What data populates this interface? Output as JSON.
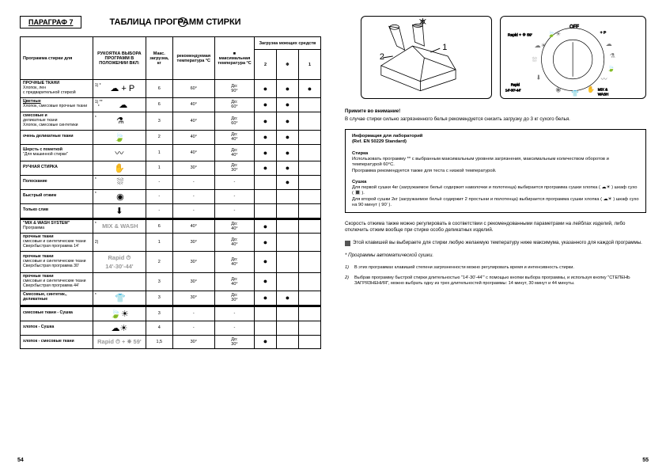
{
  "eu_badge": "EU",
  "paragraph_label": "ПАРАГРАФ 7",
  "title": "ТАБЛИЦА ПРОГРАММ СТИРКИ",
  "page_left": "54",
  "page_right": "55",
  "table": {
    "headers": {
      "program": "Программа стирки для",
      "symbol": "РУКОЯТКА ВЫБОРА ПРОГРАММ В ПОЛОЖЕНИИ ВКЛ:",
      "load": "Макс. загрузка, кг",
      "temp": "рекомендуемая температура °C",
      "maxtemp_sq": "■",
      "maxtemp": "максимальная температура °C",
      "detergent": "Загрузка моющих средств",
      "det2": "2",
      "detS": "❄",
      "det1": "1"
    },
    "rows": [
      {
        "name": "ПРОЧНЫЕ ТКАНИ",
        "sub": "Хлопок, лен\nс предварительной стиркой",
        "symbol": "☁ + P",
        "note": "1) *",
        "load": "6",
        "temp": "60°",
        "maxtemp": "До:\n90°",
        "d2": "●",
        "ds": "●",
        "d1": "●"
      },
      {
        "name": "Цветные",
        "sub": "Хлопок, смесовые прочные ткани",
        "under": true,
        "symbol": "☁",
        "note": "1) **\n*",
        "load": "6",
        "temp": "40°",
        "maxtemp": "До:\n60°",
        "d2": "●",
        "ds": "●",
        "d1": ""
      },
      {
        "name": "смесовые и",
        "sub": "деликатные ткани\nХлопок, смесовые синтетики",
        "symbol": "⚗",
        "note": "*",
        "load": "3",
        "temp": "40°",
        "maxtemp": "До:\n60°",
        "d2": "●",
        "ds": "●",
        "d1": ""
      },
      {
        "name": "очень деликатные ткани",
        "sub": "",
        "symbol": "🍃",
        "note": "",
        "load": "2",
        "temp": "40°",
        "maxtemp": "До:\n40°",
        "d2": "●",
        "ds": "●",
        "d1": ""
      },
      {
        "name": "Шерсть с пометкой",
        "sub": "\"Для машинной стирки\"",
        "symbol": "〰",
        "note": "",
        "load": "1",
        "temp": "40°",
        "maxtemp": "До:\n40°",
        "d2": "●",
        "ds": "●",
        "d1": ""
      },
      {
        "name": "РУЧНАЯ СТИРКА",
        "sub": "",
        "symbol": "✋",
        "note": "",
        "load": "1",
        "temp": "30°",
        "maxtemp": "До:\n30°",
        "d2": "●",
        "ds": "●",
        "d1": ""
      },
      {
        "name": "Полоскание",
        "sub": "",
        "symbol": "⛆",
        "note": "*",
        "load": "-",
        "temp": "-",
        "maxtemp": "-",
        "d2": "",
        "ds": "●",
        "d1": ""
      },
      {
        "name": "Быстрый отжим",
        "sub": "",
        "symbol": "◉",
        "note": "*",
        "load": "-",
        "temp": "-",
        "maxtemp": "-",
        "d2": "",
        "ds": "",
        "d1": ""
      },
      {
        "name": "Только слив",
        "sub": "",
        "symbol": "⬇",
        "note": "",
        "load": "-",
        "temp": "-",
        "maxtemp": "-",
        "d2": "",
        "ds": "",
        "d1": ""
      },
      {
        "divider": true
      },
      {
        "name": "\"MIX & WASH SYSTEM\"",
        "sub": "Программа",
        "symbol": "MIX & WASH",
        "gray": true,
        "note": "*",
        "load": "6",
        "temp": "40°",
        "maxtemp": "До:\n40°",
        "d2": "●",
        "ds": "",
        "d1": ""
      },
      {
        "name": "прочные ткани",
        "sub": "смесовые и синтетические ткани\nСверхбыстрая программа 14'",
        "symbol": " ",
        "note": "2)",
        "load": "1",
        "temp": "30°",
        "maxtemp": "До:\n40°",
        "d2": "●",
        "ds": "",
        "d1": ""
      },
      {
        "name": "прочные ткани",
        "sub": "смесовые и синтетические ткани\nСверхбыстрая программа 30'",
        "symbol": "Rapid ⏱\n14'-30'-44'",
        "gray": true,
        "load": "2",
        "temp": "30°",
        "maxtemp": "До:\n40°",
        "d2": "●",
        "ds": "",
        "d1": ""
      },
      {
        "name": "прочные ткани",
        "sub": "смесовые и синтетические ткани\nСверхбыстрая программа 44'",
        "symbol": " ",
        "load": "3",
        "temp": "30°",
        "maxtemp": "До:\n40°",
        "d2": "●",
        "ds": "",
        "d1": ""
      },
      {
        "name": "Смесовые, синтетик., деликатные",
        "sub": "",
        "symbol": "👕",
        "note": "*",
        "load": "3",
        "temp": "30°",
        "maxtemp": "До:\n30°",
        "d2": "●",
        "ds": "●",
        "d1": ""
      },
      {
        "divider": true
      },
      {
        "name": "смесовые ткани - Сушка",
        "sub": "",
        "symbol": "🍃☀",
        "note": "",
        "load": "3",
        "temp": "-",
        "maxtemp": "-",
        "d2": "",
        "ds": "",
        "d1": ""
      },
      {
        "name": "хлопок - Сушка",
        "sub": "",
        "symbol": "☁☀",
        "note": "",
        "load": "4",
        "temp": "-",
        "maxtemp": "-",
        "d2": "",
        "ds": "",
        "d1": ""
      },
      {
        "name": "хлопок - смесовые ткани",
        "sub": "",
        "symbol": "Rapid ⏱ + ☀ 59'",
        "gray": true,
        "load": "1,5",
        "temp": "30°",
        "maxtemp": "До:\n30°",
        "d2": "●",
        "ds": "",
        "d1": ""
      }
    ]
  },
  "right_text": {
    "attention_hdr": "Примите во внимание!",
    "attention_body": "В случае стирки сильно загрязненного белья рекомендуется снизить загрузку до 3 кг сухого белья.",
    "info_hdr": "Информация для лабораторий\n(Ref. EN 50229 Standard)",
    "info_wash_hdr": "Стирка",
    "info_wash": "Использовать программу ** с выбранным максимальным уровнем загрязнения, максимальным количеством оборотов и температурой 60°C.\nПрограмма рекомендуется также для теста с низкой температурой.",
    "info_dry_hdr": "Сушка",
    "info_dry": "Для первой сушки 4кг (загружаемое бельё содержит наволочки и полотенца) выбирается программа сушки хлопка ( ☁☀ ) шкаф сухо ( 🔳 ).\nДля второй сушки 2кг (загружаемое бельё содержит 2 простыни и полотенца) выбирается программа сушки хлопка ( ☁☀ ) шкаф сухо на 90 минут ( 90' ).",
    "note_speed": "Скорость отжима также можно регулировать в соответствии с рекомендованными параметрами на лейблах изделий, либо отключить отжим вообще при стирке особо деликатных изделий.",
    "note_sq": "Этой клавишей вы выбираете для стирки любую желаемую температуру ниже максимума, указанного для каждой программы.",
    "note_star": "* Программы автоматической сушки.",
    "footnote1_k": "1)",
    "footnote1": "В этих программах клавишей степени загрязненности можно регулировать время и интенсивность стирки.",
    "footnote2_k": "2)",
    "footnote2": "Выбрав программу быстрой стирки длительностью \"14'-30'-44'\" с помощью кнопки выбора программы, и используя кнопку \"СТЕПЕНЬ ЗАГРЯЗНЕНИЯ\", можно выбрать одну из трех длительностей программы: 14 минут, 30 минут и 44 минуты."
  }
}
